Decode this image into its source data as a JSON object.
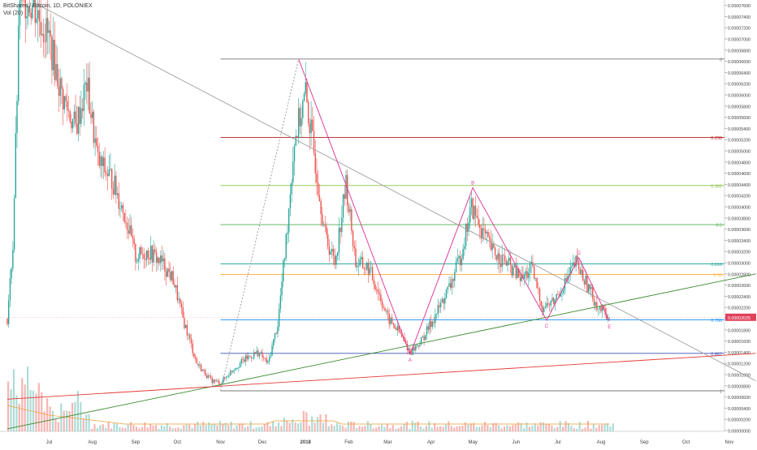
{
  "header": {
    "symbol": "BitShares / Bitcoin, 1D, POLONIEX",
    "indicator": "Vol (20)"
  },
  "colors": {
    "up": "#26a69a",
    "down": "#ef5350",
    "wedge": "#e0409a",
    "trend_upper": "#9e9e9e",
    "trend_lower": "#3a8a2e",
    "trend_red": "#e53935",
    "price_badge": "#e0405a"
  },
  "chart_data": {
    "type": "candlestick",
    "title": "BitShares / Bitcoin, 1D, POLONIEX",
    "x_ticks": [
      "Jul",
      "Aug",
      "Sep",
      "Oct",
      "Nov",
      "Dec",
      "2018",
      "Feb",
      "Mar",
      "Apr",
      "May",
      "Jun",
      "Jul",
      "Aug",
      "Sep",
      "Oct",
      "Nov"
    ],
    "y_ticks": [
      "0.00007600",
      "0.00007400",
      "0.00007200",
      "0.00007000",
      "0.00006800",
      "0.00006600",
      "0.00006400",
      "0.00006200",
      "0.00006000",
      "0.00005800",
      "0.00005600",
      "0.00005400",
      "0.00005200",
      "0.00005000",
      "0.00004800",
      "0.00004600",
      "0.00004400",
      "0.00004200",
      "0.00004000",
      "0.00003800",
      "0.00003600",
      "0.00003400",
      "0.00003200",
      "0.00003000",
      "0.00002800",
      "0.00002600",
      "0.00002400",
      "0.00002200",
      "0.00002000",
      "0.00001800",
      "0.00001600",
      "0.00001400",
      "0.00001200",
      "0.00001000",
      "0.00000800",
      "0.00000600",
      "0.00000400",
      "0.00000200",
      "0.00000000"
    ],
    "ylim": [
      0,
      7.7e-05
    ],
    "current_price": "0.00002025",
    "fib_levels": [
      {
        "label": "0",
        "value": 6.64e-05,
        "color": "#787878"
      },
      {
        "label": "0.236",
        "value": 5.24e-05,
        "color": "#b71c1c"
      },
      {
        "label": "0.382",
        "value": 4.38e-05,
        "color": "#8bc34a"
      },
      {
        "label": "0.5",
        "value": 3.68e-05,
        "color": "#4caf50"
      },
      {
        "label": "0.618",
        "value": 2.98e-05,
        "color": "#26a69a"
      },
      {
        "label": "0.65",
        "value": 2.79e-05,
        "color": "#ffb74d"
      },
      {
        "label": "0.786",
        "value": 1.98e-05,
        "color": "#2196f3"
      },
      {
        "label": "0.887",
        "value": 1.38e-05,
        "color": "#3f51b5"
      },
      {
        "label": "1",
        "value": 7.1e-06,
        "color": "#787878"
      }
    ],
    "wave_labels": [
      {
        "label": "A",
        "date": "2018-03-17",
        "value": 1.36e-05
      },
      {
        "label": "B",
        "date": "2018-05-01",
        "value": 4.34e-05
      },
      {
        "label": "C",
        "date": "2018-06-23",
        "value": 1.97e-05
      },
      {
        "label": "D",
        "date": "2018-07-16",
        "value": 3.09e-05
      },
      {
        "label": "E",
        "date": "2018-08-07",
        "value": 1.96e-05
      }
    ],
    "wave_points": [
      {
        "date": "2017-12-27",
        "value": 6.64e-05
      },
      {
        "date": "2018-03-17",
        "value": 1.36e-05
      },
      {
        "date": "2018-05-01",
        "value": 4.34e-05
      },
      {
        "date": "2018-06-23",
        "value": 1.97e-05
      },
      {
        "date": "2018-07-16",
        "value": 3.09e-05
      },
      {
        "date": "2018-08-07",
        "value": 1.96e-05
      }
    ],
    "trendlines": [
      {
        "name": "upper",
        "from": {
          "date": "2017-06-20",
          "value": 7.65e-05
        },
        "to": {
          "date": "2018-11-20",
          "value": 8.9e-06
        }
      },
      {
        "name": "lower",
        "from": {
          "date": "2017-06-01",
          "value": 3e-07
        },
        "to": {
          "date": "2018-11-20",
          "value": 2.8e-05
        }
      },
      {
        "name": "red",
        "from": {
          "date": "2017-06-01",
          "value": 5.6e-06
        },
        "to": {
          "date": "2018-11-20",
          "value": 1.38e-05
        }
      }
    ],
    "projection_line": {
      "from": {
        "date": "2017-11-01",
        "value": 7.1e-06
      },
      "to": {
        "date": "2017-12-27",
        "value": 6.64e-05
      }
    },
    "price_series": [
      {
        "date": "2017-06-01",
        "value": 2e-05
      },
      {
        "date": "2017-06-05",
        "value": 3.3e-05
      },
      {
        "date": "2017-06-10",
        "value": 7.8e-05
      },
      {
        "date": "2017-06-20",
        "value": 7.6e-05
      },
      {
        "date": "2017-07-01",
        "value": 7e-05
      },
      {
        "date": "2017-07-10",
        "value": 6e-05
      },
      {
        "date": "2017-07-20",
        "value": 5.4e-05
      },
      {
        "date": "2017-07-28",
        "value": 6.2e-05
      },
      {
        "date": "2017-08-05",
        "value": 4.8e-05
      },
      {
        "date": "2017-08-15",
        "value": 4.5e-05
      },
      {
        "date": "2017-08-25",
        "value": 3.8e-05
      },
      {
        "date": "2017-09-01",
        "value": 3.1e-05
      },
      {
        "date": "2017-09-10",
        "value": 3.2e-05
      },
      {
        "date": "2017-09-20",
        "value": 3e-05
      },
      {
        "date": "2017-09-28",
        "value": 2.7e-05
      },
      {
        "date": "2017-10-05",
        "value": 2e-05
      },
      {
        "date": "2017-10-15",
        "value": 1.2e-05
      },
      {
        "date": "2017-10-25",
        "value": 9e-06
      },
      {
        "date": "2017-11-01",
        "value": 8.5e-06
      },
      {
        "date": "2017-11-10",
        "value": 1.1e-05
      },
      {
        "date": "2017-11-20",
        "value": 1.3e-05
      },
      {
        "date": "2017-11-28",
        "value": 1.4e-05
      },
      {
        "date": "2017-12-05",
        "value": 1.2e-05
      },
      {
        "date": "2017-12-12",
        "value": 1.9e-05
      },
      {
        "date": "2017-12-18",
        "value": 3.4e-05
      },
      {
        "date": "2017-12-24",
        "value": 5.2e-05
      },
      {
        "date": "2018-01-01",
        "value": 6e-05
      },
      {
        "date": "2018-01-08",
        "value": 4.8e-05
      },
      {
        "date": "2018-01-15",
        "value": 3.5e-05
      },
      {
        "date": "2018-01-22",
        "value": 3e-05
      },
      {
        "date": "2018-01-30",
        "value": 4.4e-05
      },
      {
        "date": "2018-02-06",
        "value": 3e-05
      },
      {
        "date": "2018-02-15",
        "value": 2.9e-05
      },
      {
        "date": "2018-02-22",
        "value": 2.5e-05
      },
      {
        "date": "2018-03-01",
        "value": 2e-05
      },
      {
        "date": "2018-03-08",
        "value": 1.8e-05
      },
      {
        "date": "2018-03-17",
        "value": 1.4e-05
      },
      {
        "date": "2018-03-25",
        "value": 1.6e-05
      },
      {
        "date": "2018-04-05",
        "value": 2.1e-05
      },
      {
        "date": "2018-04-15",
        "value": 2.6e-05
      },
      {
        "date": "2018-04-22",
        "value": 3.1e-05
      },
      {
        "date": "2018-04-30",
        "value": 4e-05
      },
      {
        "date": "2018-05-07",
        "value": 3.6e-05
      },
      {
        "date": "2018-05-15",
        "value": 3.2e-05
      },
      {
        "date": "2018-05-25",
        "value": 3e-05
      },
      {
        "date": "2018-06-05",
        "value": 2.7e-05
      },
      {
        "date": "2018-06-12",
        "value": 2.9e-05
      },
      {
        "date": "2018-06-20",
        "value": 2.2e-05
      },
      {
        "date": "2018-06-28",
        "value": 2.3e-05
      },
      {
        "date": "2018-07-05",
        "value": 2.6e-05
      },
      {
        "date": "2018-07-14",
        "value": 3e-05
      },
      {
        "date": "2018-07-22",
        "value": 2.6e-05
      },
      {
        "date": "2018-07-30",
        "value": 2.2e-05
      },
      {
        "date": "2018-08-07",
        "value": 2.03e-05
      }
    ]
  }
}
